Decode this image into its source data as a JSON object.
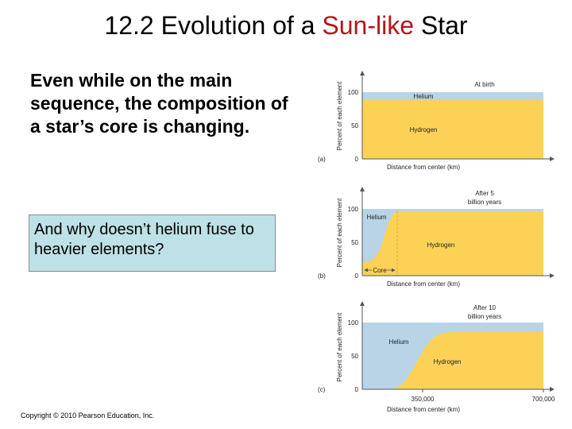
{
  "title": {
    "prefix": "12.2 Evolution of a ",
    "highlight": "Sun-like",
    "suffix": " Star",
    "highlight_color": "#b3161b"
  },
  "body_text": "Even while on the main sequence, the composition of a star’s core is changing.",
  "question": "And why doesn’t helium fuse to heavier elements?",
  "copyright": "Copyright © 2010 Pearson Education, Inc.",
  "figure": {
    "ylabel": "Percent of each element",
    "xlabel": "Distance from center (km)",
    "ytick_0": "0",
    "ytick_50": "50",
    "ytick_100": "100",
    "colors": {
      "hydrogen": "#fcd256",
      "helium": "#b8d4e6"
    },
    "panels": [
      {
        "letter": "(a)",
        "caption_line1": "At birth",
        "caption_line2": "",
        "helium_label": "Helium",
        "hydrogen_label": "Hydrogen",
        "helium_fraction": 0.07
      },
      {
        "letter": "(b)",
        "caption_line1": "After 5",
        "caption_line2": "billion years",
        "helium_label": "Helium",
        "hydrogen_label": "Hydrogen",
        "core_label": "Core"
      },
      {
        "letter": "(c)",
        "caption_line1": "After 10",
        "caption_line2": "billion years",
        "helium_label": "Helium",
        "hydrogen_label": "Hydrogen",
        "xtick_mid": "350,000",
        "xtick_end": "700,000"
      }
    ]
  }
}
